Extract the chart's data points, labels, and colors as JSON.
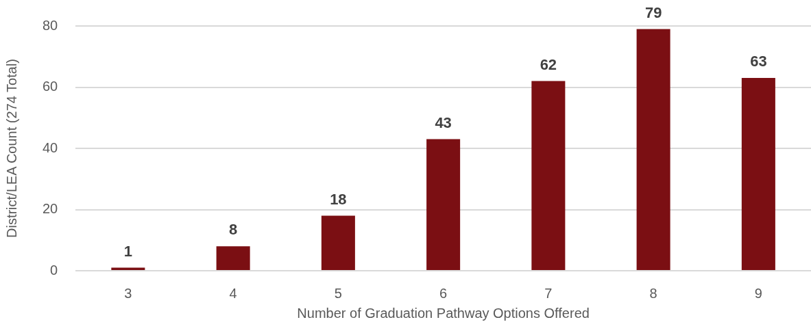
{
  "chart_data": {
    "type": "bar",
    "xlabel": "Number of Graduation Pathway Options Offered",
    "ylabel": "District/LEA Count (274 Total)",
    "categories": [
      "3",
      "4",
      "5",
      "6",
      "7",
      "8",
      "9"
    ],
    "values": [
      1,
      8,
      18,
      43,
      62,
      79,
      63
    ],
    "color": "#7b0f13",
    "ylim": [
      0,
      80
    ],
    "yticks": [
      0,
      20,
      40,
      60,
      80
    ],
    "grid": "y",
    "data_labels": true,
    "legend": false
  }
}
